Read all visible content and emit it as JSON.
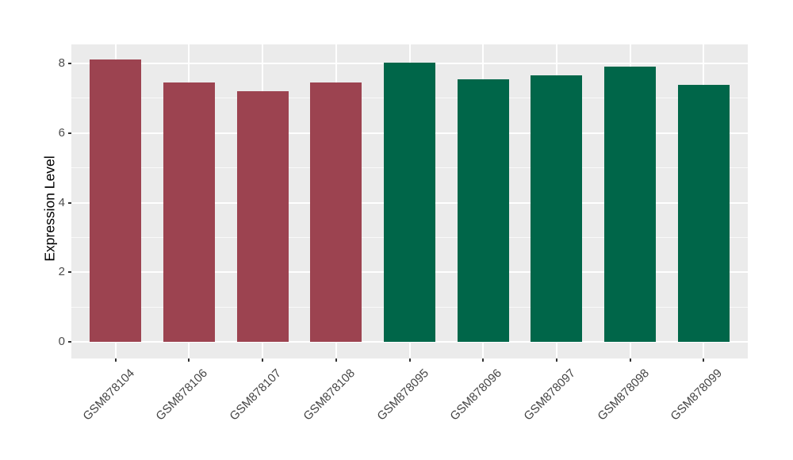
{
  "chart_data": {
    "type": "bar",
    "title": "",
    "xlabel": "",
    "ylabel": "Expression Level",
    "categories": [
      "GSM878104",
      "GSM878106",
      "GSM878107",
      "GSM878108",
      "GSM878095",
      "GSM878096",
      "GSM878097",
      "GSM878098",
      "GSM878099"
    ],
    "values": [
      8.12,
      7.45,
      7.2,
      7.45,
      8.03,
      7.55,
      7.66,
      7.91,
      7.38
    ],
    "bar_colors": [
      "#9C4350",
      "#9C4350",
      "#9C4350",
      "#9C4350",
      "#006649",
      "#006649",
      "#006649",
      "#006649",
      "#006649"
    ],
    "group_colors": {
      "left_group": "#9C4350",
      "right_group": "#006649"
    },
    "yticks": [
      "0",
      "2",
      "4",
      "6",
      "8"
    ],
    "ytick_values": [
      0,
      2,
      4,
      6,
      8
    ],
    "minor_ytick_values": [
      1,
      3,
      5,
      7
    ],
    "ylim": [
      0,
      8.55
    ],
    "grid": "on",
    "legend": "none",
    "panel_background": "#EBEBEB",
    "major_grid_color": "#FFFFFF",
    "tick_label_color": "#4D4D4D",
    "x_label_angle_deg": 45
  }
}
